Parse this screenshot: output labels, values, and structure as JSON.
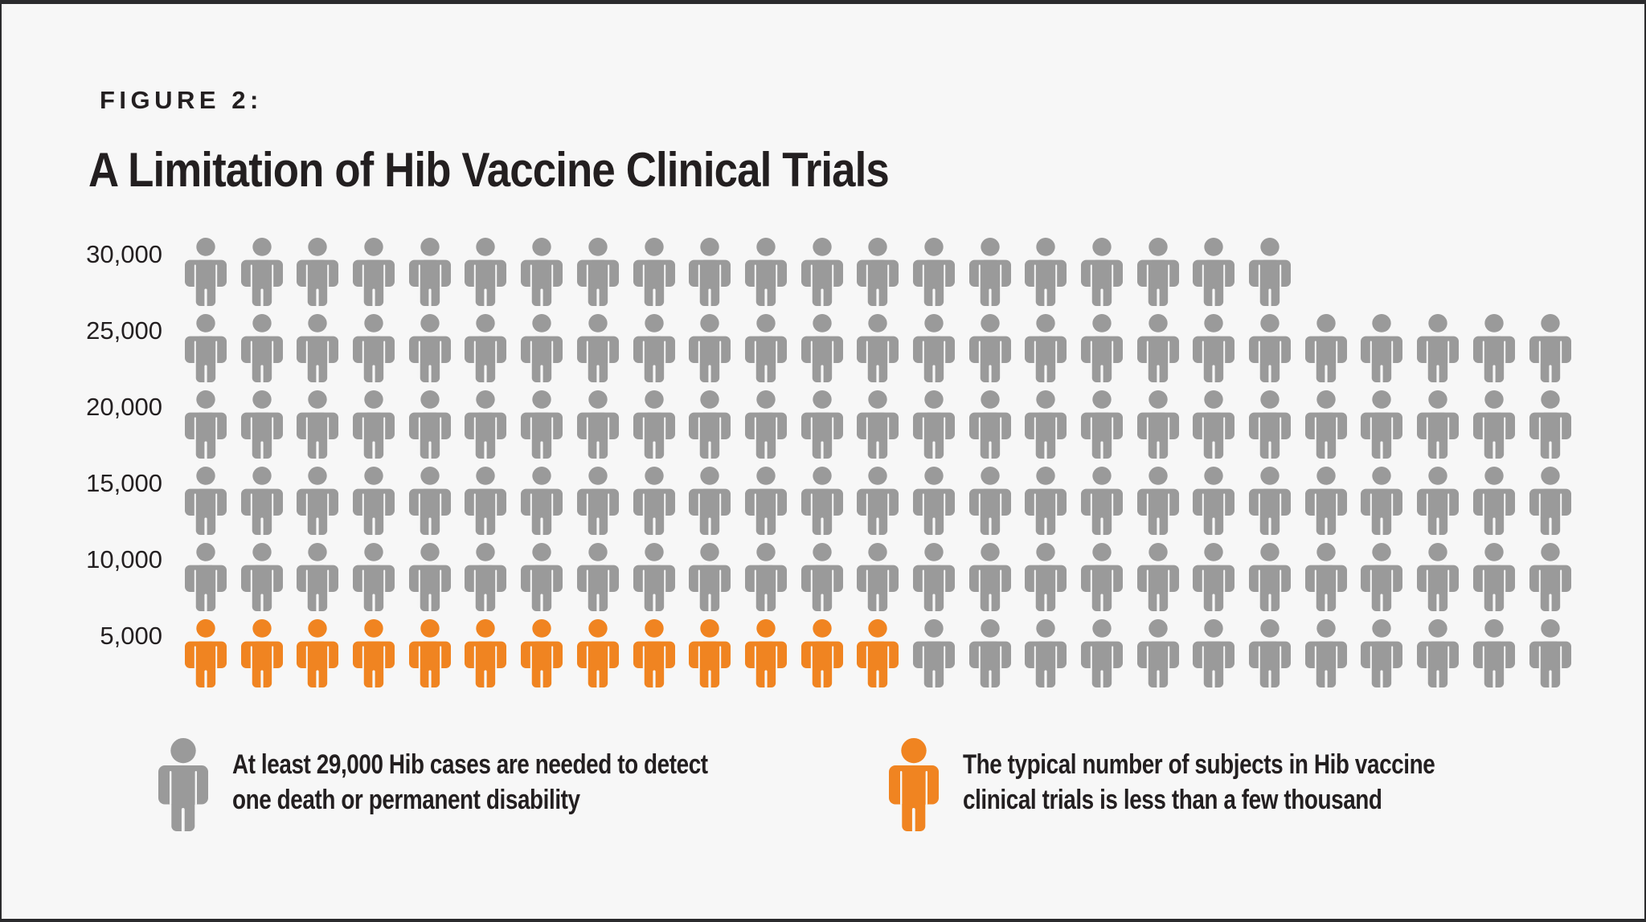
{
  "figure_label": "FIGURE 2:",
  "title": "A Limitation of Hib Vaccine Clinical Trials",
  "colors": {
    "background": "#f7f7f7",
    "text": "#231f20",
    "gray_icon": "#9a9a9a",
    "orange_icon": "#f08421",
    "frame_border": "#2b2b2d"
  },
  "chart_data": {
    "type": "pictograph",
    "title": "A Limitation of Hib Vaccine Clinical Trials",
    "ylabel": "",
    "xlabel": "",
    "axis_tick_labels": [
      "30,000",
      "25,000",
      "20,000",
      "15,000",
      "10,000",
      "5,000"
    ],
    "icons_per_full_row": 25,
    "total_icons": 145,
    "orange_icons_total": 13,
    "rows": [
      {
        "label": "30,000",
        "orange_icons": 0,
        "gray_icons": 20
      },
      {
        "label": "25,000",
        "orange_icons": 0,
        "gray_icons": 25
      },
      {
        "label": "20,000",
        "orange_icons": 0,
        "gray_icons": 25
      },
      {
        "label": "15,000",
        "orange_icons": 0,
        "gray_icons": 25
      },
      {
        "label": "10,000",
        "orange_icons": 0,
        "gray_icons": 25
      },
      {
        "label": "5,000",
        "orange_icons": 13,
        "gray_icons": 12
      }
    ]
  },
  "legend": {
    "items": [
      {
        "icon": "gray-person-icon",
        "color": "#9a9a9a",
        "lines": [
          "At least 29,000 Hib cases are needed to detect",
          "one death or permanent disability"
        ]
      },
      {
        "icon": "orange-person-icon",
        "color": "#f08421",
        "lines": [
          "The typical number of subjects in Hib vaccine",
          "clinical trials is less than a few thousand"
        ]
      }
    ]
  }
}
